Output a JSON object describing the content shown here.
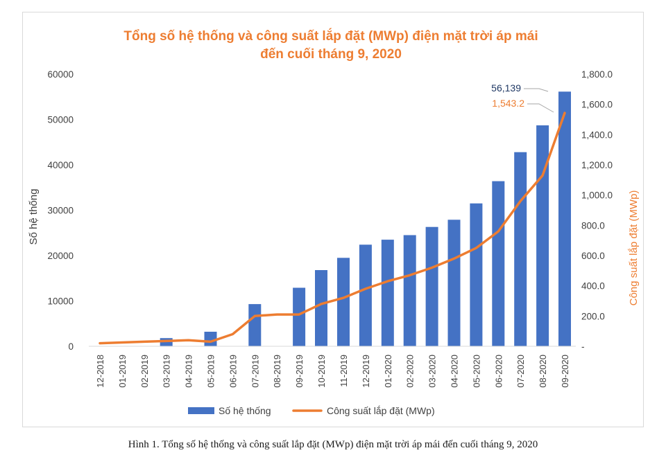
{
  "chart_data": {
    "type": "bar+line",
    "title_lines": [
      "Tổng số hệ thống và công suất lắp đặt (MWp) điện mặt trời áp mái",
      "đến cuối tháng 9, 2020"
    ],
    "categories": [
      "12-2018",
      "01-2019",
      "02-2019",
      "03-2019",
      "04-2019",
      "05-2019",
      "06-2019",
      "07-2019",
      "08-2019",
      "09-2019",
      "10-2019",
      "11-2019",
      "12-2019",
      "01-2020",
      "02-2020",
      "03-2020",
      "04-2020",
      "05-2020",
      "06-2020",
      "07-2020",
      "08-2020",
      "09-2020"
    ],
    "series": [
      {
        "name": "Số hệ thống",
        "type": "bar",
        "axis": "left",
        "color": "#4472c4",
        "values": [
          0,
          0,
          0,
          1800,
          0,
          3200,
          0,
          9300,
          0,
          12900,
          16800,
          19500,
          22400,
          23500,
          24500,
          26300,
          27900,
          31500,
          36400,
          42800,
          48700,
          56139
        ]
      },
      {
        "name": "Công suất lắp đặt (MWp)",
        "type": "line",
        "axis": "right",
        "color": "#ed7d31",
        "values": [
          20,
          25,
          30,
          35,
          40,
          30,
          80,
          200,
          210,
          210,
          280,
          320,
          380,
          430,
          470,
          520,
          580,
          650,
          760,
          960,
          1130,
          1543.2
        ]
      }
    ],
    "left_axis": {
      "label": "Số hệ thống",
      "ylim": [
        0,
        60000
      ],
      "ticks": [
        "0",
        "10000",
        "20000",
        "30000",
        "40000",
        "50000",
        "60000"
      ]
    },
    "right_axis": {
      "label": "Công suất lắp đặt (MWp)",
      "ylim": [
        0,
        1800
      ],
      "ticks": [
        "-",
        "200.0",
        "400.0",
        "600.0",
        "800.0",
        "1,000.0",
        "1,200.0",
        "1,400.0",
        "1,600.0",
        "1,800.0"
      ]
    },
    "annotations": {
      "bar_last": "56,139",
      "line_last": "1,543.2"
    },
    "legend_position": "bottom"
  },
  "caption": "Hình 1. Tổng số hệ thống và công suất lắp đặt (MWp) điện mặt trời áp mái đến cuối tháng 9, 2020"
}
